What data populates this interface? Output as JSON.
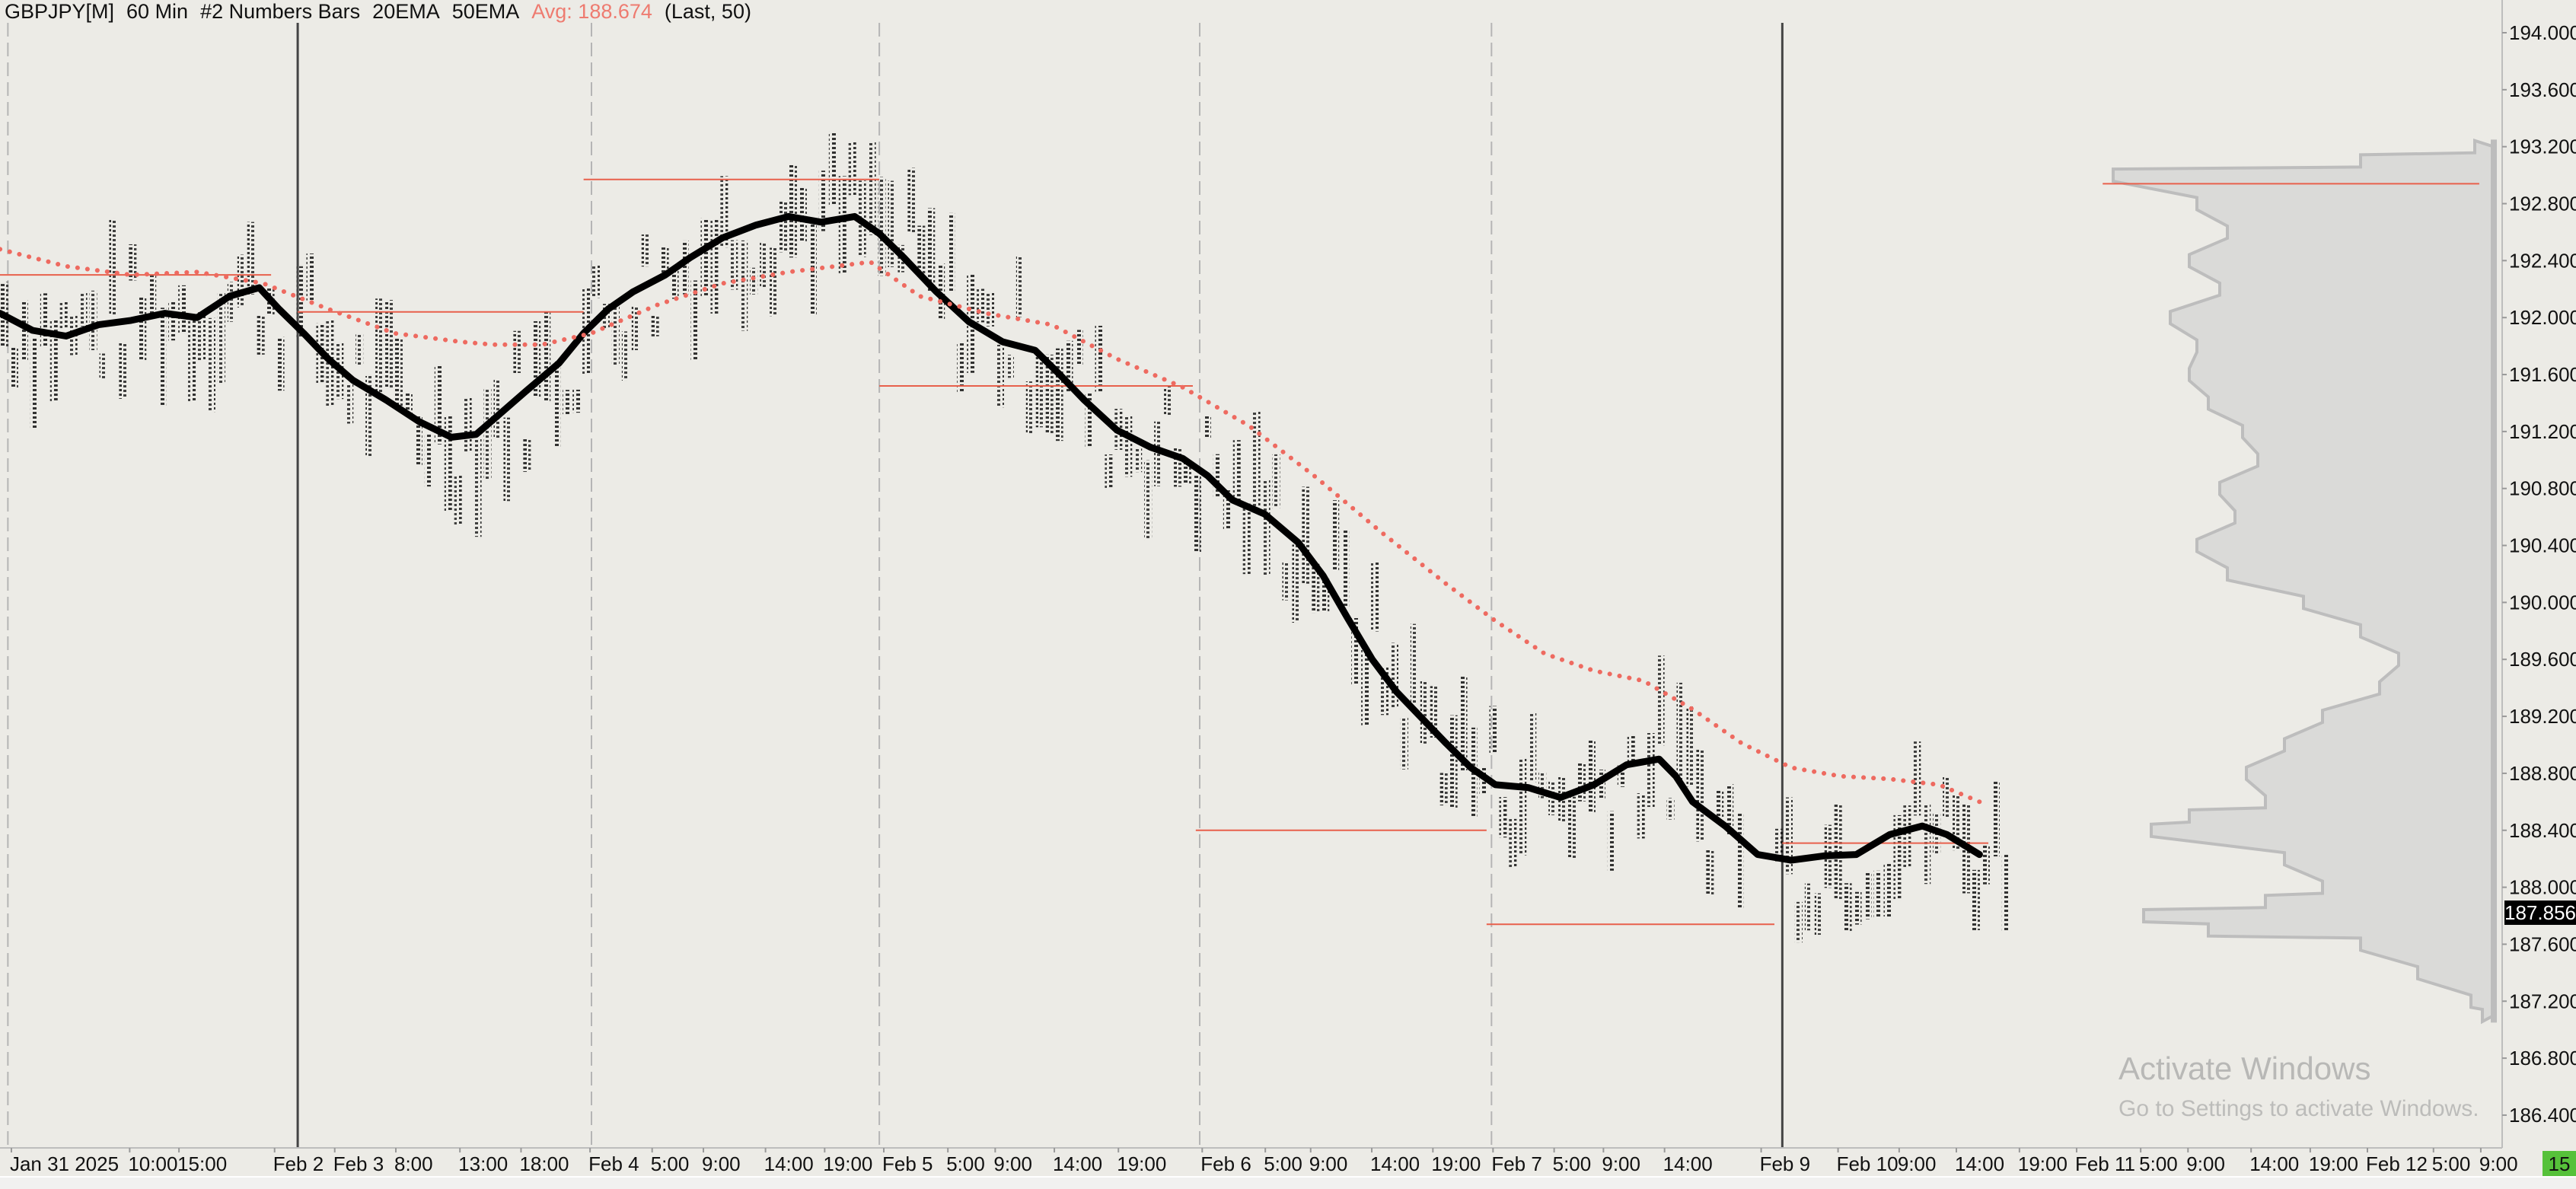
{
  "header": {
    "symbol": "GBPJPY[M]",
    "interval": "60 Min",
    "bar_type": "#2 Numbers Bars",
    "ema_fast": "20EMA",
    "ema_slow": "50EMA",
    "avg": "Avg: 188.674",
    "last": "(Last, 50)"
  },
  "colors": {
    "background": "#ecebe6",
    "ema20": "#000000",
    "ema50": "#ee6a60",
    "poc": "#e8604c",
    "profile": "#bdbdbd",
    "badge": "#56c13a"
  },
  "last_price": "187.856",
  "corner_badge": "15",
  "watermark": {
    "title": "Activate Windows",
    "subtitle": "Go to Settings to activate Windows."
  },
  "chart_data": {
    "type": "line",
    "title": "GBPJPY[M] 60 Min",
    "ylim": [
      186.2,
      194.15
    ],
    "y_ticks": [
      "194.000",
      "193.600",
      "193.200",
      "192.800",
      "192.400",
      "192.000",
      "191.600",
      "191.200",
      "190.800",
      "190.400",
      "190.000",
      "189.600",
      "189.200",
      "188.800",
      "188.400",
      "188.000",
      "187.600",
      "187.200",
      "186.800",
      "186.400"
    ],
    "x_labels": [
      {
        "t": "Jan 31 2025",
        "x": 1
      },
      {
        "t": "10:00",
        "x": 13
      },
      {
        "t": "15:00",
        "x": 18
      },
      {
        "t": "Feb 2",
        "x": 27.7
      },
      {
        "t": "Feb 3",
        "x": 33.8
      },
      {
        "t": "8:00",
        "x": 40
      },
      {
        "t": "13:00",
        "x": 46.5
      },
      {
        "t": "18:00",
        "x": 52.7
      },
      {
        "t": "Feb 4",
        "x": 59.7
      },
      {
        "t": "5:00",
        "x": 66
      },
      {
        "t": "9:00",
        "x": 71.2
      },
      {
        "t": "14:00",
        "x": 77.5
      },
      {
        "t": "19:00",
        "x": 83.5
      },
      {
        "t": "Feb 5",
        "x": 89.5
      },
      {
        "t": "5:00",
        "x": 96
      },
      {
        "t": "9:00",
        "x": 100.8
      },
      {
        "t": "14:00",
        "x": 106.8
      },
      {
        "t": "19:00",
        "x": 113.3
      },
      {
        "t": "Feb 6",
        "x": 121.8
      },
      {
        "t": "5:00",
        "x": 128.2
      },
      {
        "t": "9:00",
        "x": 132.8
      },
      {
        "t": "14:00",
        "x": 139
      },
      {
        "t": "19:00",
        "x": 145.2
      },
      {
        "t": "Feb 7",
        "x": 151.3
      },
      {
        "t": "5:00",
        "x": 157.5
      },
      {
        "t": "9:00",
        "x": 162.5
      },
      {
        "t": "14:00",
        "x": 168.7
      },
      {
        "t": "Feb 9",
        "x": 178.5
      },
      {
        "t": "Feb 10",
        "x": 186.3
      },
      {
        "t": "9:00",
        "x": 192.5
      },
      {
        "t": "14:00",
        "x": 198.3
      },
      {
        "t": "19:00",
        "x": 204.7
      },
      {
        "t": "Feb 11",
        "x": 210.5
      },
      {
        "t": "5:00",
        "x": 217
      },
      {
        "t": "9:00",
        "x": 221.8
      },
      {
        "t": "14:00",
        "x": 228.2
      },
      {
        "t": "19:00",
        "x": 234.2
      },
      {
        "t": "Feb 12",
        "x": 240
      },
      {
        "t": "5:00",
        "x": 246.7
      },
      {
        "t": "9:00",
        "x": 251.5
      }
    ],
    "session_separators": [
      {
        "x": 0.8,
        "style": "dashed"
      },
      {
        "x": 30.2,
        "style": "solid"
      },
      {
        "x": 60,
        "style": "dashed"
      },
      {
        "x": 89.2,
        "style": "dashed"
      },
      {
        "x": 121.7,
        "style": "dashed"
      },
      {
        "x": 151.3,
        "style": "dashed"
      },
      {
        "x": 180.8,
        "style": "solid"
      }
    ],
    "series": [
      {
        "name": "20EMA",
        "style": "solid",
        "x": [
          0,
          3.3,
          6.7,
          10,
          13.3,
          16.7,
          20,
          23.3,
          26.3,
          28.3,
          30.8,
          33.3,
          35.8,
          39.2,
          42.5,
          45.8,
          48.3,
          50.8,
          53.3,
          56.7,
          59.2,
          61.7,
          64.2,
          67.5,
          70,
          73.3,
          76.7,
          80,
          83.3,
          86.7,
          89.2,
          91.7,
          95,
          98.3,
          101.7,
          105,
          107.5,
          110,
          113.3,
          116.7,
          120,
          122.5,
          125,
          128.3,
          131.7,
          134.2,
          136.7,
          139.2,
          141.7,
          144.2,
          146.7,
          149.2,
          151.7,
          155,
          158.3,
          161.7,
          165,
          168.3,
          170,
          171.7,
          175,
          178.3,
          181.7,
          185,
          188.3,
          191.7,
          195,
          197.5,
          200.8
        ],
        "y": [
          192.03,
          191.91,
          191.87,
          191.95,
          191.98,
          192.03,
          192.0,
          192.15,
          192.21,
          192.06,
          191.89,
          191.71,
          191.56,
          191.42,
          191.27,
          191.16,
          191.18,
          191.33,
          191.48,
          191.68,
          191.89,
          192.06,
          192.18,
          192.3,
          192.42,
          192.56,
          192.65,
          192.71,
          192.67,
          192.71,
          192.59,
          192.42,
          192.18,
          191.97,
          191.83,
          191.77,
          191.6,
          191.42,
          191.21,
          191.09,
          191.01,
          190.89,
          190.72,
          190.62,
          190.42,
          190.19,
          189.89,
          189.6,
          189.37,
          189.19,
          189.01,
          188.84,
          188.72,
          188.7,
          188.63,
          188.72,
          188.86,
          188.9,
          188.78,
          188.6,
          188.43,
          188.23,
          188.19,
          188.22,
          188.23,
          188.37,
          188.43,
          188.37,
          188.23
        ]
      },
      {
        "name": "50EMA",
        "style": "dotted",
        "x": [
          0,
          6.7,
          13.3,
          20,
          26.7,
          33.3,
          40,
          46.7,
          50,
          55,
          60,
          66.7,
          73.3,
          80,
          88.3,
          93.3,
          100,
          106.7,
          113.3,
          120,
          126.7,
          133.3,
          140,
          146.7,
          151.7,
          156.7,
          161.7,
          166.7,
          171.7,
          176.7,
          181.7,
          186.7,
          191.7,
          196.7,
          200.8
        ],
        "y": [
          192.48,
          192.36,
          192.3,
          192.32,
          192.24,
          192.06,
          191.89,
          191.83,
          191.81,
          191.81,
          191.89,
          192.09,
          192.24,
          192.32,
          192.39,
          192.15,
          192.03,
          191.95,
          191.71,
          191.51,
          191.24,
          190.89,
          190.5,
          190.13,
          189.87,
          189.64,
          189.52,
          189.45,
          189.25,
          189.01,
          188.84,
          188.78,
          188.76,
          188.72,
          188.6
        ]
      }
    ],
    "poc_lines": [
      {
        "price": 192.3,
        "from": 0,
        "to": 27.5
      },
      {
        "price": 192.04,
        "from": 30.2,
        "to": 59.2
      },
      {
        "price": 192.97,
        "from": 59.2,
        "to": 89.2
      },
      {
        "price": 191.52,
        "from": 89.2,
        "to": 121
      },
      {
        "price": 188.4,
        "from": 121.3,
        "to": 150.8
      },
      {
        "price": 187.74,
        "from": 150.8,
        "to": 180
      },
      {
        "price": 188.31,
        "from": 180.8,
        "to": 201.7
      },
      {
        "price": 192.94,
        "from": 213.3,
        "to": 251.5
      }
    ],
    "composite_profile": {
      "prices": [
        187.1,
        187.2,
        187.4,
        187.6,
        187.7,
        187.8,
        187.9,
        188.0,
        188.2,
        188.4,
        188.5,
        188.6,
        188.8,
        189.0,
        189.2,
        189.4,
        189.6,
        189.8,
        190.0,
        190.2,
        190.4,
        190.6,
        190.8,
        191.0,
        191.2,
        191.4,
        191.6,
        191.8,
        192.0,
        192.2,
        192.4,
        192.6,
        192.8,
        193.0,
        193.1,
        193.2
      ],
      "volume": [
        0.03,
        0.06,
        0.2,
        0.35,
        0.75,
        0.92,
        0.6,
        0.45,
        0.55,
        0.9,
        0.8,
        0.6,
        0.65,
        0.55,
        0.45,
        0.3,
        0.25,
        0.35,
        0.5,
        0.7,
        0.78,
        0.68,
        0.72,
        0.62,
        0.66,
        0.75,
        0.8,
        0.78,
        0.85,
        0.72,
        0.8,
        0.7,
        0.78,
        1.0,
        0.35,
        0.05
      ]
    }
  }
}
